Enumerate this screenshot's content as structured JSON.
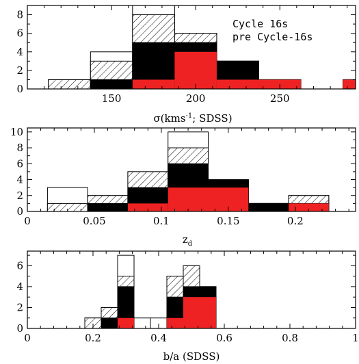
{
  "colors": {
    "open": "#ffffff",
    "hatched": "#000000",
    "solid": "#000000",
    "red": "#ee2222"
  },
  "legend": {
    "line1": "Cycle 16s",
    "line2": "pre Cycle-16s",
    "line1_color": "#000000",
    "line2_color": "#ee2222"
  },
  "chart_data": [
    {
      "type": "bar",
      "layers": [
        "open",
        "hatched",
        "solid",
        "red"
      ],
      "xlabel_main": "σ(kms",
      "xlabel_sup": "-1",
      "xlabel_rest": "; SDSS)",
      "xlim": [
        100,
        295
      ],
      "ylim": [
        0,
        9
      ],
      "xticks": [
        150,
        200,
        250
      ],
      "yticks": [
        0,
        2,
        4,
        6,
        8
      ],
      "x_edges": [
        112.5,
        137.5,
        162.5,
        187.5,
        212.5,
        237.5,
        262.5,
        287.5,
        312.5
      ],
      "series": [
        {
          "name": "Open",
          "values": [
            1,
            4,
            9,
            6,
            3,
            1,
            0,
            1
          ]
        },
        {
          "name": "Hatched",
          "values": [
            1,
            3,
            8,
            6,
            3,
            1,
            0,
            1
          ]
        },
        {
          "name": "Solid",
          "values": [
            0,
            1,
            5,
            5,
            3,
            1,
            0,
            1
          ]
        },
        {
          "name": "Red",
          "values": [
            0,
            0,
            1,
            4,
            1,
            1,
            0,
            1
          ]
        }
      ]
    },
    {
      "type": "bar",
      "layers": [
        "open",
        "hatched",
        "solid",
        "red"
      ],
      "xlabel_main": "z",
      "xlabel_sub": "d",
      "xlim": [
        0,
        0.245
      ],
      "ylim": [
        0,
        10.5
      ],
      "xticks": [
        0,
        0.05,
        0.1,
        0.15,
        0.2
      ],
      "xtick_labels": [
        "0",
        "0.05",
        "0.1",
        "0.15",
        "0.2"
      ],
      "yticks": [
        0,
        2,
        4,
        6,
        8,
        10
      ],
      "x_edges": [
        0.015,
        0.045,
        0.075,
        0.105,
        0.135,
        0.165,
        0.195,
        0.225
      ],
      "series": [
        {
          "name": "Open",
          "values": [
            3,
            2,
            5,
            10,
            4,
            1,
            2
          ]
        },
        {
          "name": "Hatched",
          "values": [
            1,
            2,
            5,
            8,
            4,
            1,
            2
          ]
        },
        {
          "name": "Solid",
          "values": [
            0,
            1,
            3,
            6,
            4,
            1,
            1
          ]
        },
        {
          "name": "Red",
          "values": [
            0,
            0,
            1,
            3,
            3,
            0,
            1
          ]
        }
      ]
    },
    {
      "type": "bar",
      "layers": [
        "open",
        "hatched",
        "solid",
        "red"
      ],
      "xlabel_main": "b/a (SDSS)",
      "xlim": [
        0,
        1
      ],
      "ylim": [
        0,
        7.4
      ],
      "xticks": [
        0,
        0.2,
        0.4,
        0.6,
        0.8,
        1
      ],
      "xtick_labels": [
        "0",
        "0.2",
        "0.4",
        "0.6",
        "0.8",
        "1"
      ],
      "yticks": [
        0,
        2,
        4,
        6
      ],
      "x_edges": [
        0.175,
        0.225,
        0.275,
        0.325,
        0.375,
        0.425,
        0.475,
        0.525,
        0.575
      ],
      "series": [
        {
          "name": "Open",
          "values": [
            1,
            2,
            7,
            1,
            1,
            5,
            6,
            4
          ]
        },
        {
          "name": "Hatched",
          "values": [
            1,
            2,
            5,
            0,
            0,
            5,
            6,
            4
          ]
        },
        {
          "name": "Solid",
          "values": [
            0,
            1,
            4,
            0,
            0,
            3,
            4,
            4
          ]
        },
        {
          "name": "Red",
          "values": [
            0,
            0,
            1,
            0,
            0,
            1,
            3,
            3
          ]
        }
      ]
    }
  ]
}
